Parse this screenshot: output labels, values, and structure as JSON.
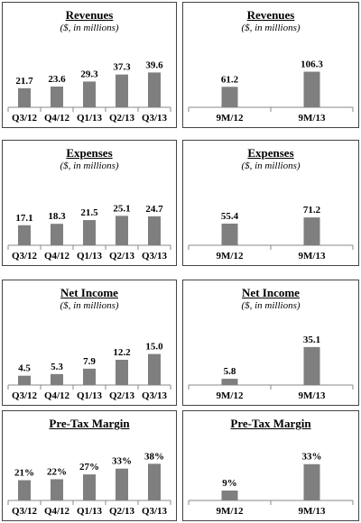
{
  "chart_data": [
    {
      "type": "bar",
      "title": "Revenues",
      "subtitle": "($, in millions)",
      "categories": [
        "Q3/12",
        "Q4/12",
        "Q1/13",
        "Q2/13",
        "Q3/13"
      ],
      "values": [
        21.7,
        23.6,
        29.3,
        37.3,
        39.6
      ],
      "value_labels": [
        "21.7",
        "23.6",
        "29.3",
        "37.3",
        "39.6"
      ],
      "ylim": [
        0,
        80
      ],
      "grid": false,
      "bar_color": "#7f7f7f"
    },
    {
      "type": "bar",
      "title": "Revenues",
      "subtitle": "($, in millions)",
      "categories": [
        "9M/12",
        "9M/13"
      ],
      "values": [
        61.2,
        106.3
      ],
      "value_labels": [
        "61.2",
        "106.3"
      ],
      "ylim": [
        0,
        210
      ],
      "grid": false,
      "bar_color": "#7f7f7f"
    },
    {
      "type": "bar",
      "title": "Expenses",
      "subtitle": "($, in millions)",
      "categories": [
        "Q3/12",
        "Q4/12",
        "Q1/13",
        "Q2/13",
        "Q3/13"
      ],
      "values": [
        17.1,
        18.3,
        21.5,
        25.1,
        24.7
      ],
      "value_labels": [
        "17.1",
        "18.3",
        "21.5",
        "25.1",
        "24.7"
      ],
      "ylim": [
        0,
        60
      ],
      "grid": false,
      "bar_color": "#7f7f7f"
    },
    {
      "type": "bar",
      "title": "Expenses",
      "subtitle": "($, in millions)",
      "categories": [
        "9M/12",
        "9M/13"
      ],
      "values": [
        55.4,
        71.2
      ],
      "value_labels": [
        "55.4",
        "71.2"
      ],
      "ylim": [
        0,
        180
      ],
      "grid": false,
      "bar_color": "#7f7f7f"
    },
    {
      "type": "bar",
      "title": "Net Income",
      "subtitle": "($, in millions)",
      "categories": [
        "Q3/12",
        "Q4/12",
        "Q1/13",
        "Q2/13",
        "Q3/13"
      ],
      "values": [
        4.5,
        5.3,
        7.9,
        12.2,
        15.0
      ],
      "value_labels": [
        "4.5",
        "5.3",
        "7.9",
        "12.2",
        "15.0"
      ],
      "ylim": [
        0,
        34
      ],
      "grid": false,
      "bar_color": "#7f7f7f"
    },
    {
      "type": "bar",
      "title": "Net Income",
      "subtitle": "($, in millions)",
      "categories": [
        "9M/12",
        "9M/13"
      ],
      "values": [
        5.8,
        35.1
      ],
      "value_labels": [
        "5.8",
        "35.1"
      ],
      "ylim": [
        0,
        65
      ],
      "grid": false,
      "bar_color": "#7f7f7f"
    },
    {
      "type": "bar",
      "title": "Pre-Tax Margin",
      "subtitle": "",
      "categories": [
        "Q3/12",
        "Q4/12",
        "Q1/13",
        "Q2/13",
        "Q3/13"
      ],
      "values": [
        21,
        22,
        27,
        33,
        38
      ],
      "value_labels": [
        "21%",
        "22%",
        "27%",
        "33%",
        "38%"
      ],
      "ylim": [
        0,
        57
      ],
      "grid": false,
      "bar_color": "#7f7f7f"
    },
    {
      "type": "bar",
      "title": "Pre-Tax Margin",
      "subtitle": "",
      "categories": [
        "9M/12",
        "9M/13"
      ],
      "values": [
        9,
        33
      ],
      "value_labels": [
        "9%",
        "33%"
      ],
      "ylim": [
        0,
        50
      ],
      "grid": false,
      "bar_color": "#7f7f7f"
    }
  ]
}
